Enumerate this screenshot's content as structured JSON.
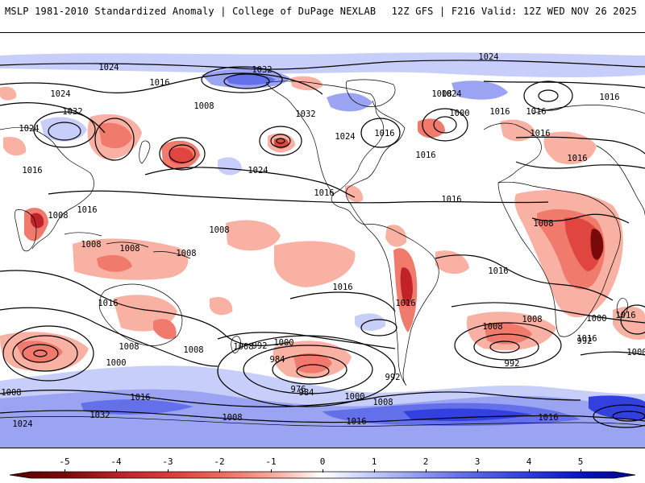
{
  "header": {
    "left_text": "MSLP 1981-2010 Standardized Anomaly | College of DuPage NEXLAB",
    "right_text": "12Z GFS | F216 Valid: 12Z WED NOV 26 2025"
  },
  "colors": {
    "neg5": "#7a0a0a",
    "neg4": "#c0222a",
    "neg3": "#e0463f",
    "neg2": "#f07a6c",
    "neg1": "#f9b1a3",
    "pos1": "#c8cefa",
    "pos2": "#9aa4f2",
    "pos3": "#6470ea",
    "pos4": "#3340e0",
    "pos5": "#0a14c8",
    "isobar": "#000000",
    "coast": "#000000"
  },
  "colorbar": {
    "labels": [
      "-5",
      "-4",
      "-3",
      "-2",
      "-1",
      "0",
      "1",
      "2",
      "3",
      "4",
      "5"
    ]
  },
  "isobar_labels": [
    "1024",
    "1032",
    "1024",
    "1016",
    "1024",
    "1032",
    "1024",
    "1024",
    "1008",
    "1000",
    "1016",
    "1016",
    "1016",
    "1008",
    "1016",
    "1008",
    "1016",
    "1024",
    "1024",
    "1016",
    "1016",
    "1032",
    "1016",
    "1016",
    "1016",
    "1016",
    "1008",
    "1008",
    "1008",
    "1008",
    "1016",
    "1016",
    "1016",
    "1008",
    "1016",
    "1008",
    "1016",
    "1000",
    "1008",
    "1008",
    "1008",
    "992",
    "984",
    "1000",
    "984",
    "976",
    "992",
    "1000",
    "992",
    "1008",
    "1000",
    "992",
    "1016",
    "1008",
    "1016",
    "1008",
    "1024",
    "1032",
    "1008",
    "1016",
    "1016",
    "1000"
  ]
}
